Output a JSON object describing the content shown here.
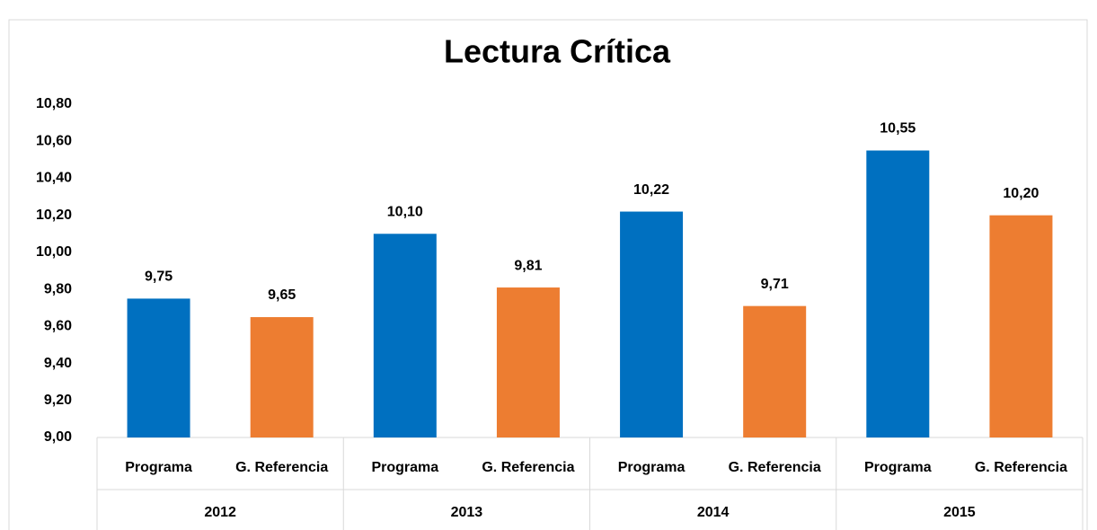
{
  "chart_data": {
    "type": "bar",
    "title": "Lectura Crítica",
    "categories": [
      "2012",
      "2013",
      "2014",
      "2015"
    ],
    "series": [
      {
        "name": "Programa",
        "color": "#0070c0",
        "values": [
          9.75,
          10.1,
          10.22,
          10.55
        ],
        "value_labels": [
          "9,75",
          "10,10",
          "10,22",
          "10,55"
        ]
      },
      {
        "name": "G. Referencia",
        "color": "#ed7d31",
        "values": [
          9.65,
          9.81,
          9.71,
          10.2
        ],
        "value_labels": [
          "9,65",
          "9,81",
          "9,71",
          "10,20"
        ]
      }
    ],
    "ylim": [
      9,
      10.8
    ],
    "yticks": [
      {
        "value": 9,
        "label": "9,00"
      },
      {
        "value": 9.2,
        "label": "9,20"
      },
      {
        "value": 9.4,
        "label": "9,40"
      },
      {
        "value": 9.6,
        "label": "9,60"
      },
      {
        "value": 9.8,
        "label": "9,80"
      },
      {
        "value": 10,
        "label": "10,00"
      },
      {
        "value": 10.2,
        "label": "10,20"
      },
      {
        "value": 10.4,
        "label": "10,40"
      },
      {
        "value": 10.6,
        "label": "10,60"
      },
      {
        "value": 10.8,
        "label": "10,80"
      }
    ],
    "grid": false
  }
}
